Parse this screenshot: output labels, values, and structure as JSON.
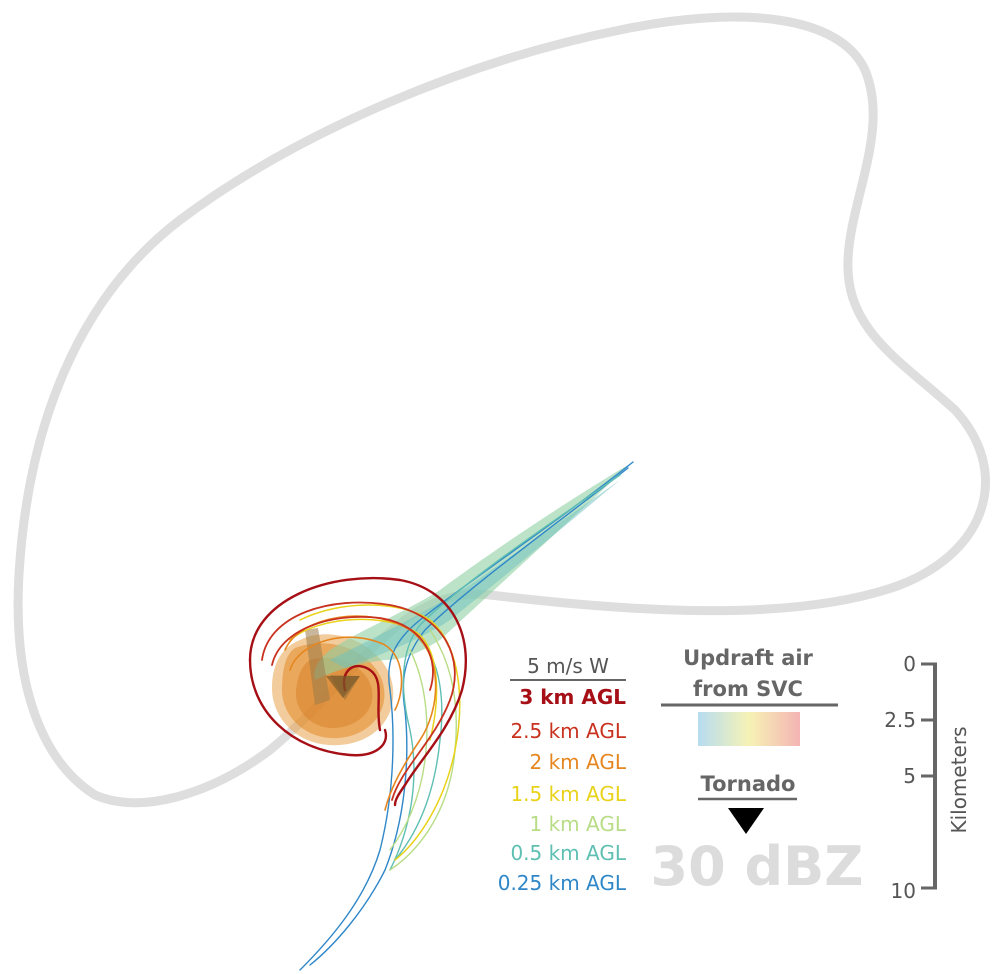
{
  "colors": {
    "outline": "#d9d9d9",
    "axis": "#666666",
    "km3": "#a50f15",
    "km2_5": "#c8321f",
    "km2": "#e6861f",
    "km1_5": "#e9d21a",
    "km1": "#b8dd86",
    "km0_5": "#5ebfb2",
    "km0_25": "#2f87c8",
    "dbz": "#dcdcdc",
    "tornado": "#000000"
  },
  "legend": {
    "header": "5 m/s W",
    "levels": [
      {
        "label": "3 km AGL",
        "color": "#a50f15"
      },
      {
        "label": "2.5 km AGL",
        "color": "#c8321f"
      },
      {
        "label": "2 km AGL",
        "color": "#e6861f"
      },
      {
        "label": "1.5 km AGL",
        "color": "#e9d21a"
      },
      {
        "label": "1 km AGL",
        "color": "#b8dd86"
      },
      {
        "label": "0.5 km AGL",
        "color": "#5ebfb2"
      },
      {
        "label": "0.25 km AGL",
        "color": "#2f87c8"
      }
    ]
  },
  "updraft": {
    "title_line1": "Updraft air",
    "title_line2": "from SVC",
    "gradient_colors": [
      "#a9d6ee",
      "#f5f0a8",
      "#f2a7a7"
    ]
  },
  "tornado_label": "Tornado",
  "reflectivity_label": "30 dBZ",
  "scale": {
    "axis_title": "Kilometers",
    "ticks": [
      "0",
      "2.5",
      "5",
      "10"
    ]
  }
}
